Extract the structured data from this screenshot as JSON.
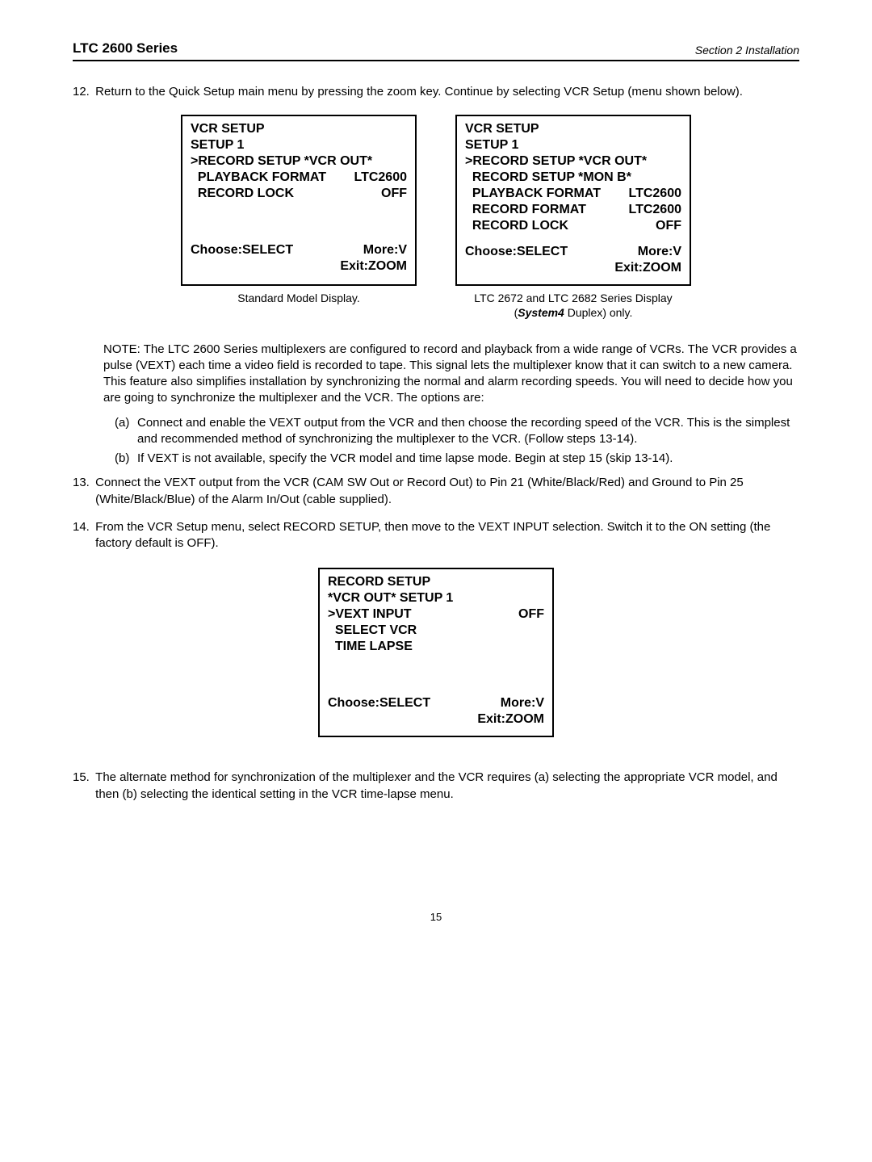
{
  "header": {
    "left": "LTC 2600 Series",
    "right": "Section 2 Installation"
  },
  "step12": {
    "num": "12.",
    "text": "Return to the Quick Setup main menu by pressing the zoom key.  Continue by selecting VCR Setup (menu shown below)."
  },
  "menu1": {
    "l1": "VCR SETUP",
    "l2": "SETUP 1",
    "l3": ">RECORD SETUP *VCR OUT*",
    "l4l": "  PLAYBACK FORMAT",
    "l4r": "LTC2600",
    "l5l": "  RECORD LOCK",
    "l5r": "OFF",
    "f1l": "Choose:SELECT",
    "f1r": "More:V",
    "f2r": "Exit:ZOOM"
  },
  "menu2": {
    "l1": "VCR SETUP",
    "l2": "SETUP 1",
    "l3": ">RECORD SETUP *VCR OUT*",
    "l4": "  RECORD SETUP *MON B*",
    "l5l": "  PLAYBACK FORMAT",
    "l5r": "LTC2600",
    "l6l": "  RECORD FORMAT",
    "l6r": "LTC2600",
    "l7l": "  RECORD LOCK",
    "l7r": "OFF",
    "f1l": "Choose:SELECT",
    "f1r": "More:V",
    "f2r": "Exit:ZOOM"
  },
  "caption1": "Standard Model Display.",
  "caption2a": "LTC 2672 and LTC 2682 Series Display",
  "caption2b_pre": "(",
  "caption2b_ital": "System4",
  "caption2b_post": " Duplex) only.",
  "note": "NOTE: The LTC 2600 Series multiplexers are configured to record and playback from a wide range of VCRs. The VCR provides a pulse (VEXT) each time a video field is recorded to tape.  This signal lets the multiplexer know that it can switch to a new camera.  This feature also simplifies installation by synchronizing the normal and alarm recording speeds. You will need to decide how you are going to synchronize the multiplexer and the VCR.  The options are:",
  "sub_a_key": "(a)",
  "sub_a_txt": "Connect and enable the VEXT output from the VCR and then choose the recording speed of the VCR.  This is the simplest and recommended method of synchronizing the multiplexer to the VCR. (Follow steps 13-14).",
  "sub_b_key": "(b)",
  "sub_b_txt": "If  VEXT is not available, specify the VCR model and time lapse mode. Begin at step 15 (skip 13-14).",
  "step13": {
    "num": "13.",
    "text": "Connect the VEXT output from the VCR (CAM SW Out or Record Out) to Pin 21 (White/Black/Red) and Ground to Pin 25 (White/Black/Blue) of the Alarm In/Out (cable supplied)."
  },
  "step14": {
    "num": "14.",
    "text": "From the VCR Setup menu, select RECORD SETUP, then move to the VEXT INPUT selection. Switch it to the ON setting (the factory default is OFF)."
  },
  "menu3": {
    "l1": "RECORD SETUP",
    "l2": "*VCR OUT*  SETUP 1",
    "l3l": ">VEXT INPUT",
    "l3r": "OFF",
    "l4": "  SELECT VCR",
    "l5": "  TIME LAPSE",
    "f1l": "Choose:SELECT",
    "f1r": "More:V",
    "f2r": "Exit:ZOOM"
  },
  "step15": {
    "num": "15.",
    "text": "The alternate method for synchronization of the multiplexer and the VCR requires (a) selecting the appropriate VCR model, and then (b) selecting the identical setting in the VCR time-lapse menu."
  },
  "pagenum": "15"
}
